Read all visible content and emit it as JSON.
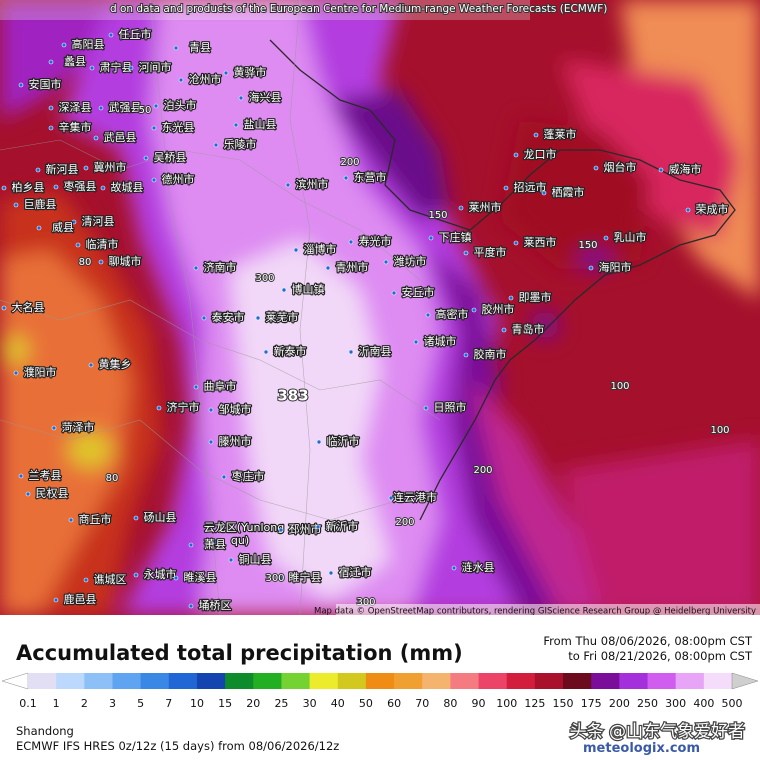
{
  "header": {
    "source": "d on data and products of the European Centre for Medium-range Weather Forecasts (ECMWF)"
  },
  "map": {
    "attribution": "Map data © OpenStreetMap contributors, rendering GIScience Research Group @ Heidelberg University",
    "labels": [
      "任丘市",
      "高阳县",
      "蠡县",
      "肃宁县",
      "河间市",
      "青县",
      "安国市",
      "沧州市",
      "黄骅市",
      "深泽县",
      "武强县",
      "泊头市",
      "海兴县",
      "辛集市",
      "武邑县",
      "东光县",
      "盐山县",
      "乐陵市",
      "新河县",
      "冀州市",
      "吴桥县",
      "德州市",
      "枣强县",
      "故城县",
      "柏乡县",
      "巨鹿县",
      "滨州市",
      "东营市",
      "蓬莱市",
      "龙口市",
      "烟台市",
      "威海市",
      "招远市",
      "栖霞市",
      "荣成市",
      "莱州市",
      "下庄镇",
      "乳山市",
      "莱西市",
      "平度市",
      "海阳市",
      "寿光市",
      "潍坊市",
      "淄博市",
      "青州市",
      "济南市",
      "安丘市",
      "博山镇",
      "即墨市",
      "胶州市",
      "高密市",
      "青岛市",
      "泰安市",
      "莱芜市",
      "诸城市",
      "新泰市",
      "沂南县",
      "胶南市",
      "聊城市",
      "临清市",
      "清河县",
      "威县",
      "大名县",
      "濮阳市",
      "黄集乡",
      "曲阜市",
      "济宁市",
      "邹城市",
      "日照市",
      "菏泽市",
      "滕州市",
      "临沂市",
      "兰考县",
      "民权县",
      "枣庄市",
      "连云港市",
      "商丘市",
      "砀山县",
      "云龙区(Yunlong",
      "qu)",
      "邳州市",
      "新沂市",
      "萧县",
      "铜山县",
      "宿迁市",
      "永城市",
      "谯城区",
      "睢溪县",
      "睢宁县",
      "涟水县",
      "鹿邑县",
      "埇桥区"
    ],
    "contour_labels": [
      "50",
      "80",
      "200",
      "150",
      "300",
      "150",
      "383",
      "100",
      "100",
      "80",
      "200",
      "200",
      "300",
      "300"
    ]
  },
  "legend": {
    "title": "Accumulated total precipitation (mm)",
    "from": "From Thu 08/06/2026, 08:00pm CST",
    "to": "to Fri 08/21/2026, 08:00pm CST",
    "levels": [
      0.1,
      1,
      2,
      3,
      5,
      7,
      10,
      15,
      20,
      25,
      30,
      40,
      50,
      60,
      70,
      80,
      90,
      100,
      125,
      150,
      175,
      200,
      250,
      300,
      400,
      500
    ],
    "colors": [
      "#ffffff",
      "#e2def4",
      "#bcd8fc",
      "#8ec0f8",
      "#5ea4f0",
      "#3a88e6",
      "#2066d4",
      "#1444b0",
      "#0e8c2c",
      "#22b022",
      "#74d232",
      "#ecec2c",
      "#d2c81e",
      "#f08c14",
      "#f0a030",
      "#f4b46e",
      "#f47c80",
      "#ec4468",
      "#d21e3c",
      "#a8102c",
      "#6c0a1e",
      "#7a0e9a",
      "#a430dc",
      "#d05cf0",
      "#e8a4f6",
      "#f4dcfa",
      "#cfcfcf",
      "#909090"
    ]
  },
  "footer": {
    "region": "Shandong",
    "model": "ECMWF IFS HRES 0z/12z (15 days) from 08/06/2026/12z",
    "watermark": "头条 @山东气象爱好者",
    "brand": "meteologix.com"
  }
}
